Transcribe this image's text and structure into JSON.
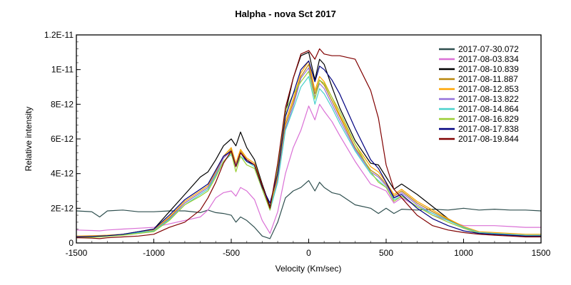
{
  "chart_data": {
    "type": "line",
    "title": "Halpha - nova Sct 2017",
    "xlabel": "Velocity (Km/sec)",
    "ylabel": "Relative intensity",
    "xlim": [
      -1500,
      1500
    ],
    "ylim": [
      0,
      1.2e-11
    ],
    "x_ticks": [
      -1500,
      -1000,
      -500,
      0,
      500,
      1000,
      1500
    ],
    "x_tick_labels": [
      "-1500",
      "-1000",
      "-500",
      "0",
      "500",
      "1000",
      "1500"
    ],
    "y_ticks": [
      0,
      2e-12,
      4e-12,
      6e-12,
      8e-12,
      1e-11,
      1.2e-11
    ],
    "y_tick_labels": [
      "0",
      "2E-12",
      "4E-12",
      "6E-12",
      "8E-12",
      "1E-11",
      "1.2E-11"
    ],
    "grid": false,
    "legend_position": "top-right",
    "y_unit_scale": 1e-12,
    "x": [
      -1500,
      -1400,
      -1350,
      -1300,
      -1200,
      -1100,
      -1000,
      -900,
      -800,
      -700,
      -650,
      -600,
      -550,
      -500,
      -470,
      -440,
      -400,
      -350,
      -300,
      -250,
      -200,
      -150,
      -100,
      -50,
      0,
      40,
      70,
      100,
      150,
      200,
      300,
      400,
      450,
      500,
      550,
      600,
      700,
      800,
      900,
      1000,
      1100,
      1200,
      1300,
      1400,
      1500
    ],
    "series": [
      {
        "name": "2017-07-30.072",
        "color": "#2F4F4F",
        "values": [
          1.85,
          1.8,
          1.5,
          1.85,
          1.9,
          1.8,
          1.8,
          1.85,
          1.85,
          1.75,
          1.9,
          1.75,
          1.7,
          1.6,
          1.2,
          1.5,
          1.3,
          0.9,
          0.4,
          0.25,
          1.2,
          2.6,
          3.0,
          3.2,
          3.6,
          3.0,
          3.5,
          3.2,
          2.9,
          2.8,
          2.2,
          2.0,
          1.7,
          2.0,
          1.7,
          1.95,
          1.9,
          1.95,
          1.9,
          2.0,
          1.9,
          1.95,
          1.9,
          1.9,
          1.85
        ]
      },
      {
        "name": "2017-08-03.834",
        "color": "#DA70D6",
        "values": [
          0.75,
          0.72,
          0.7,
          0.75,
          0.8,
          0.85,
          0.9,
          1.1,
          1.3,
          1.5,
          1.9,
          2.6,
          2.9,
          3.0,
          2.7,
          3.2,
          3.0,
          2.5,
          1.3,
          0.55,
          1.8,
          4.0,
          5.5,
          6.5,
          7.9,
          7.1,
          8.0,
          7.6,
          7.0,
          6.2,
          4.7,
          3.4,
          3.2,
          3.0,
          2.3,
          2.6,
          2.1,
          1.6,
          1.3,
          1.0,
          1.0,
          1.0,
          0.95,
          0.9,
          0.9
        ]
      },
      {
        "name": "2017-08-10.839",
        "color": "#000000",
        "values": [
          0.35,
          0.38,
          0.4,
          0.42,
          0.5,
          0.65,
          0.8,
          1.8,
          2.8,
          3.8,
          4.1,
          4.8,
          5.6,
          6.0,
          5.6,
          6.4,
          5.5,
          4.8,
          3.4,
          2.1,
          4.0,
          7.5,
          9.5,
          10.8,
          11.0,
          9.4,
          10.6,
          10.3,
          9.0,
          7.8,
          5.9,
          4.6,
          4.5,
          3.8,
          3.1,
          3.4,
          2.8,
          2.1,
          1.4,
          0.9,
          0.6,
          0.5,
          0.45,
          0.4,
          0.4
        ]
      },
      {
        "name": "2017-08-11.887",
        "color": "#B8860B",
        "values": [
          0.38,
          0.4,
          0.42,
          0.44,
          0.5,
          0.62,
          0.72,
          1.45,
          2.3,
          2.9,
          3.2,
          4.0,
          4.9,
          5.4,
          4.5,
          5.3,
          4.8,
          4.5,
          3.2,
          1.9,
          3.8,
          6.8,
          8.1,
          9.6,
          10.3,
          8.6,
          9.4,
          9.1,
          8.2,
          7.3,
          5.5,
          4.2,
          3.9,
          3.4,
          2.7,
          3.0,
          2.3,
          1.8,
          1.35,
          0.9,
          0.6,
          0.55,
          0.5,
          0.45,
          0.45
        ]
      },
      {
        "name": "2017-08-12.853",
        "color": "#FFA500",
        "values": [
          0.4,
          0.42,
          0.43,
          0.45,
          0.5,
          0.65,
          0.75,
          1.5,
          2.4,
          3.0,
          3.3,
          4.1,
          5.0,
          5.5,
          4.6,
          5.4,
          4.9,
          4.6,
          3.3,
          2.0,
          3.9,
          7.0,
          8.3,
          9.8,
          10.5,
          8.8,
          9.6,
          9.3,
          8.4,
          7.4,
          5.7,
          4.4,
          4.1,
          3.5,
          2.8,
          3.1,
          2.4,
          1.9,
          1.4,
          0.95,
          0.65,
          0.6,
          0.55,
          0.5,
          0.5
        ]
      },
      {
        "name": "2017-08-13.822",
        "color": "#9370DB",
        "values": [
          0.35,
          0.38,
          0.4,
          0.42,
          0.48,
          0.6,
          0.7,
          1.4,
          2.3,
          2.9,
          3.2,
          4.0,
          4.9,
          5.3,
          4.5,
          5.2,
          4.8,
          4.5,
          3.2,
          1.9,
          3.6,
          6.6,
          7.9,
          9.5,
          10.1,
          8.4,
          9.2,
          8.9,
          8.0,
          7.1,
          5.4,
          4.1,
          3.8,
          3.3,
          2.6,
          2.9,
          2.2,
          1.7,
          1.3,
          0.9,
          0.6,
          0.55,
          0.5,
          0.45,
          0.45
        ]
      },
      {
        "name": "2017-08-14.864",
        "color": "#48D1CC",
        "values": [
          0.35,
          0.37,
          0.4,
          0.42,
          0.48,
          0.6,
          0.7,
          1.35,
          2.2,
          2.8,
          3.1,
          3.9,
          4.7,
          5.1,
          4.4,
          5.0,
          4.7,
          4.4,
          3.1,
          1.9,
          3.5,
          6.5,
          7.7,
          9.0,
          9.6,
          8.0,
          8.9,
          8.6,
          7.8,
          6.9,
          5.3,
          4.0,
          3.6,
          3.2,
          2.5,
          2.7,
          2.1,
          1.7,
          1.3,
          0.9,
          0.6,
          0.55,
          0.5,
          0.45,
          0.45
        ]
      },
      {
        "name": "2017-08-16.829",
        "color": "#9ACD32",
        "values": [
          0.3,
          0.33,
          0.35,
          0.38,
          0.45,
          0.55,
          0.65,
          1.3,
          2.2,
          2.7,
          3.0,
          3.8,
          4.7,
          5.2,
          4.1,
          5.0,
          4.5,
          4.3,
          3.1,
          1.9,
          4.3,
          7.6,
          8.6,
          9.3,
          9.9,
          8.3,
          9.4,
          9.2,
          8.4,
          7.6,
          5.7,
          4.1,
          3.5,
          3.2,
          2.4,
          2.7,
          2.1,
          1.6,
          1.2,
          0.85,
          0.55,
          0.5,
          0.45,
          0.4,
          0.4
        ]
      },
      {
        "name": "2017-08-17.838",
        "color": "#000080",
        "values": [
          0.35,
          0.38,
          0.4,
          0.42,
          0.5,
          0.65,
          0.8,
          1.6,
          2.5,
          3.1,
          3.4,
          4.2,
          5.0,
          5.3,
          4.4,
          5.2,
          4.7,
          4.5,
          3.2,
          2.3,
          4.0,
          7.3,
          8.6,
          10.0,
          10.5,
          9.3,
          10.2,
          10.0,
          9.4,
          8.6,
          6.6,
          4.8,
          4.3,
          3.5,
          2.6,
          2.8,
          2.0,
          1.4,
          1.0,
          0.7,
          0.55,
          0.5,
          0.45,
          0.4,
          0.4
        ]
      },
      {
        "name": "2017-08-19.844",
        "color": "#800000",
        "values": [
          0.3,
          0.28,
          0.25,
          0.3,
          0.35,
          0.4,
          0.5,
          0.9,
          1.2,
          1.9,
          2.6,
          3.5,
          4.6,
          5.3,
          4.4,
          5.2,
          4.8,
          4.5,
          3.3,
          2.0,
          4.6,
          7.8,
          9.5,
          10.9,
          11.1,
          10.6,
          11.2,
          10.9,
          10.8,
          10.8,
          10.6,
          8.8,
          7.2,
          4.5,
          3.1,
          2.6,
          1.6,
          1.0,
          0.75,
          0.6,
          0.5,
          0.45,
          0.4,
          0.35,
          0.35
        ]
      }
    ]
  }
}
